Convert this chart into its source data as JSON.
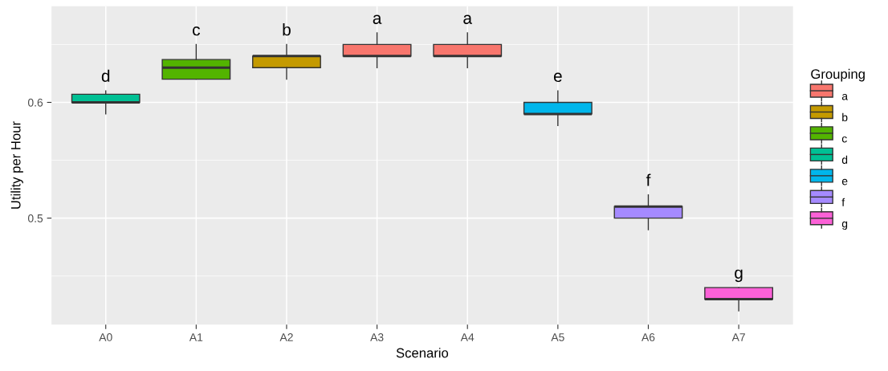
{
  "chart_data": {
    "type": "box",
    "xlabel": "Scenario",
    "ylabel": "Utility per Hour",
    "legend_title": "Grouping",
    "categories": [
      "A0",
      "A1",
      "A2",
      "A3",
      "A4",
      "A5",
      "A6",
      "A7"
    ],
    "ylim": [
      0.408,
      0.683
    ],
    "yticks": [
      0.5,
      0.6
    ],
    "grid": true,
    "legend": "right",
    "series": [
      {
        "name": "a",
        "color": "#f8766d",
        "boxes": [
          null,
          null,
          null,
          {
            "low": 0.63,
            "q1": 0.64,
            "median": 0.64,
            "q3": 0.65,
            "high": 0.66
          },
          {
            "low": 0.63,
            "q1": 0.64,
            "median": 0.64,
            "q3": 0.65,
            "high": 0.66
          },
          null,
          null,
          null
        ]
      },
      {
        "name": "b",
        "color": "#c49a00",
        "boxes": [
          null,
          null,
          {
            "low": 0.62,
            "q1": 0.63,
            "median": 0.64,
            "q3": 0.64,
            "high": 0.65
          },
          null,
          null,
          null,
          null,
          null
        ]
      },
      {
        "name": "c",
        "color": "#53b400",
        "boxes": [
          null,
          {
            "low": 0.62,
            "q1": 0.62,
            "median": 0.63,
            "q3": 0.637,
            "high": 0.65
          },
          null,
          null,
          null,
          null,
          null,
          null
        ]
      },
      {
        "name": "d",
        "color": "#00c094",
        "boxes": [
          {
            "low": 0.59,
            "q1": 0.6,
            "median": 0.6,
            "q3": 0.607,
            "high": 0.61
          },
          null,
          null,
          null,
          null,
          null,
          null,
          null
        ]
      },
      {
        "name": "e",
        "color": "#00b6eb",
        "boxes": [
          null,
          null,
          null,
          null,
          null,
          {
            "low": 0.58,
            "q1": 0.59,
            "median": 0.59,
            "q3": 0.6,
            "high": 0.61
          },
          null,
          null
        ]
      },
      {
        "name": "f",
        "color": "#a58aff",
        "boxes": [
          null,
          null,
          null,
          null,
          null,
          null,
          {
            "low": 0.49,
            "q1": 0.5,
            "median": 0.51,
            "q3": 0.51,
            "high": 0.52
          },
          null
        ]
      },
      {
        "name": "g",
        "color": "#fb61d7",
        "boxes": [
          null,
          null,
          null,
          null,
          null,
          null,
          null,
          {
            "low": 0.42,
            "q1": 0.43,
            "median": 0.43,
            "q3": 0.44,
            "high": 0.44
          }
        ]
      }
    ],
    "annotations": [
      "d",
      "c",
      "b",
      "a",
      "a",
      "e",
      "f",
      "g"
    ]
  }
}
